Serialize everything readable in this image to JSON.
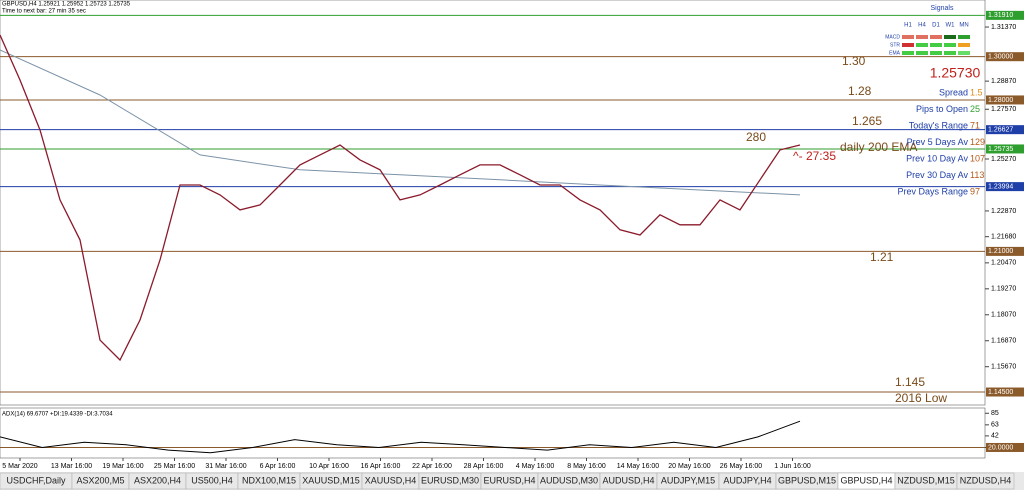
{
  "header": {
    "symbol_line": "GBPUSD,H4 1.25921 1.25952 1.25723 1.25735",
    "timer": "Time to next bar: 27 min 35 sec"
  },
  "chart": {
    "type": "line",
    "color": "#8b1a2b",
    "values": [
      1.31,
      1.2892,
      1.2661,
      1.2338,
      1.2153,
      1.169,
      1.1598,
      1.1783,
      1.206,
      1.2407,
      1.2407,
      1.2361,
      1.2292,
      1.2315,
      1.2407,
      1.25,
      1.2546,
      1.2592,
      1.2523,
      1.2477,
      1.2338,
      1.2361,
      1.2407,
      1.2454,
      1.25,
      1.25,
      1.2454,
      1.2407,
      1.2407,
      1.2338,
      1.2292,
      1.22,
      1.2176,
      1.2269,
      1.2223,
      1.2223,
      1.2338,
      1.2292,
      1.2431,
      1.2569,
      1.2592
    ],
    "ema_color": "#7c93a8",
    "ema_values": [
      1.3031,
      1.2823,
      1.2546,
      1.2477,
      1.2454,
      1.2431,
      1.2407,
      1.2384,
      1.2361
    ],
    "ylim": [
      1.139,
      1.3262
    ],
    "yticks": [
      {
        "value": 1.3137,
        "label": "1.31370"
      },
      {
        "value": 1.2887,
        "label": "1.28870"
      },
      {
        "value": 1.2757,
        "label": "1.27570"
      },
      {
        "value": 1.2527,
        "label": "1.25270"
      },
      {
        "value": 1.2287,
        "label": "1.22870"
      },
      {
        "value": 1.2168,
        "label": "1.21680"
      },
      {
        "value": 1.2047,
        "label": "1.20470"
      },
      {
        "value": 1.1927,
        "label": "1.19270"
      },
      {
        "value": 1.1807,
        "label": "1.18070"
      },
      {
        "value": 1.1687,
        "label": "1.16870"
      },
      {
        "value": 1.1567,
        "label": "1.15670"
      }
    ],
    "levels": [
      {
        "value": 1.3191,
        "label": "1.31910",
        "color": "#2e9e2e"
      },
      {
        "value": 1.3,
        "label": "1.30000",
        "color": "#8b5a2b"
      },
      {
        "value": 1.28,
        "label": "1.28000",
        "color": "#8b5a2b"
      },
      {
        "value": 1.26627,
        "label": "1.26627",
        "color": "#1f3fa8"
      },
      {
        "value": 1.25735,
        "label": "1.25735",
        "color": "#2e9e2e"
      },
      {
        "value": 1.23994,
        "label": "1.23994",
        "color": "#1f3fa8"
      },
      {
        "value": 1.21,
        "label": "1.21000",
        "color": "#8b5a2b"
      },
      {
        "value": 1.145,
        "label": "1.14500",
        "color": "#8b5a2b"
      }
    ],
    "annotations": [
      "1.30",
      "1.28",
      "1.265",
      "280",
      "daily 200 EMA",
      "^- 27:35",
      "1.21",
      "1.145",
      "2016 Low"
    ]
  },
  "signals": {
    "title": "Signals",
    "columns": [
      "H1",
      "H4",
      "D1",
      "W1",
      "MN"
    ],
    "rows": [
      {
        "name": "MACD",
        "colors": [
          "#e07060",
          "#e07060",
          "#e07060",
          "#1a6a1a",
          "#2ea02e"
        ]
      },
      {
        "name": "STR",
        "colors": [
          "#d03030",
          "#44cc44",
          "#44cc44",
          "#44cc44",
          "#f0a020"
        ]
      },
      {
        "name": "EMA",
        "colors": [
          "#44cc44",
          "#44cc44",
          "#44cc44",
          "#44cc44",
          "#66dd66"
        ]
      }
    ]
  },
  "price_big": "1.25730",
  "stats": [
    {
      "label": "Spread",
      "value": 1.5
    },
    {
      "label": "Pips to Open",
      "value": 25
    },
    {
      "label": "Today's Range",
      "value": 71
    },
    {
      "label": "Prev 5 Days Av",
      "value": 129
    },
    {
      "label": "Prev 10 Day Av",
      "value": 107
    },
    {
      "label": "Prev 30 Day Av",
      "value": 113
    },
    {
      "label": "Prev Days Range",
      "value": 97
    }
  ],
  "indicator": {
    "title": "ADX(14) 69.6707 +DI:19.4339 -DI:3.7034",
    "ylim": [
      0,
      95
    ],
    "yticks": [
      85,
      63,
      42,
      20
    ],
    "level": {
      "value": 20,
      "label": "20.0000"
    },
    "values": [
      40,
      20,
      30,
      25,
      15,
      10,
      20,
      35,
      25,
      20,
      30,
      25,
      20,
      15,
      25,
      20,
      30,
      20,
      40,
      70
    ]
  },
  "time_labels": [
    "5 Mar 2020",
    "13 Mar 16:00",
    "19 Mar 16:00",
    "25 Mar 16:00",
    "31 Mar 16:00",
    "6 Apr 16:00",
    "10 Apr 16:00",
    "16 Apr 16:00",
    "22 Apr 16:00",
    "28 Apr 16:00",
    "4 May 16:00",
    "8 May 16:00",
    "14 May 16:00",
    "20 May 16:00",
    "26 May 16:00",
    "1 Jun 16:00"
  ],
  "tabs": [
    "USDCHF,Daily",
    "ASX200,M5",
    "ASX200,H4",
    "US500,H4",
    "NDX100,M15",
    "XAUUSD,M15",
    "XAUUSD,H4",
    "EURUSD,M30",
    "EURUSD,H4",
    "AUDUSD,M30",
    "AUDUSD,H4",
    "AUDJPY,M15",
    "AUDJPY,H4",
    "GBPUSD,M15",
    "GBPUSD,H4",
    "NZDUSD,M15",
    "NZDUSD,H4"
  ],
  "active_tab": 14
}
